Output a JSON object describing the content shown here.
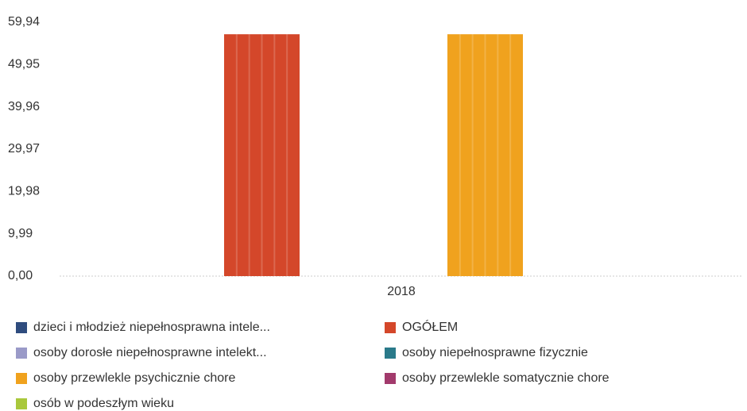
{
  "chart_data": {
    "type": "bar",
    "categories": [
      "2018"
    ],
    "series": [
      {
        "name": "dzieci i młodzież niepełnosprawna intele...",
        "color": "#2f4c7e",
        "values": [
          null
        ]
      },
      {
        "name": "OGÓŁEM",
        "color": "#d4472a",
        "values": [
          57.1
        ]
      },
      {
        "name": "osoby dorosłe niepełnosprawne intelekt...",
        "color": "#9a9ac8",
        "values": [
          null
        ]
      },
      {
        "name": "osoby niepełnosprawne fizycznie",
        "color": "#2a7a8a",
        "values": [
          null
        ]
      },
      {
        "name": "osoby przewlekle psychicznie chore",
        "color": "#f0a21e",
        "values": [
          57.1
        ]
      },
      {
        "name": "osoby przewlekle somatycznie chore",
        "color": "#a23a6c",
        "values": [
          null
        ]
      },
      {
        "name": "osób w podeszłym wieku",
        "color": "#a9c83c",
        "values": [
          null
        ]
      }
    ],
    "ylim": [
      0,
      59.94
    ],
    "yticks": [
      {
        "value": 0,
        "label": "0,00"
      },
      {
        "value": 9.99,
        "label": "9,99"
      },
      {
        "value": 19.98,
        "label": "19,98"
      },
      {
        "value": 29.97,
        "label": "29,97"
      },
      {
        "value": 39.96,
        "label": "39,96"
      },
      {
        "value": 49.95,
        "label": "49,95"
      },
      {
        "value": 59.94,
        "label": "59,94"
      }
    ]
  }
}
